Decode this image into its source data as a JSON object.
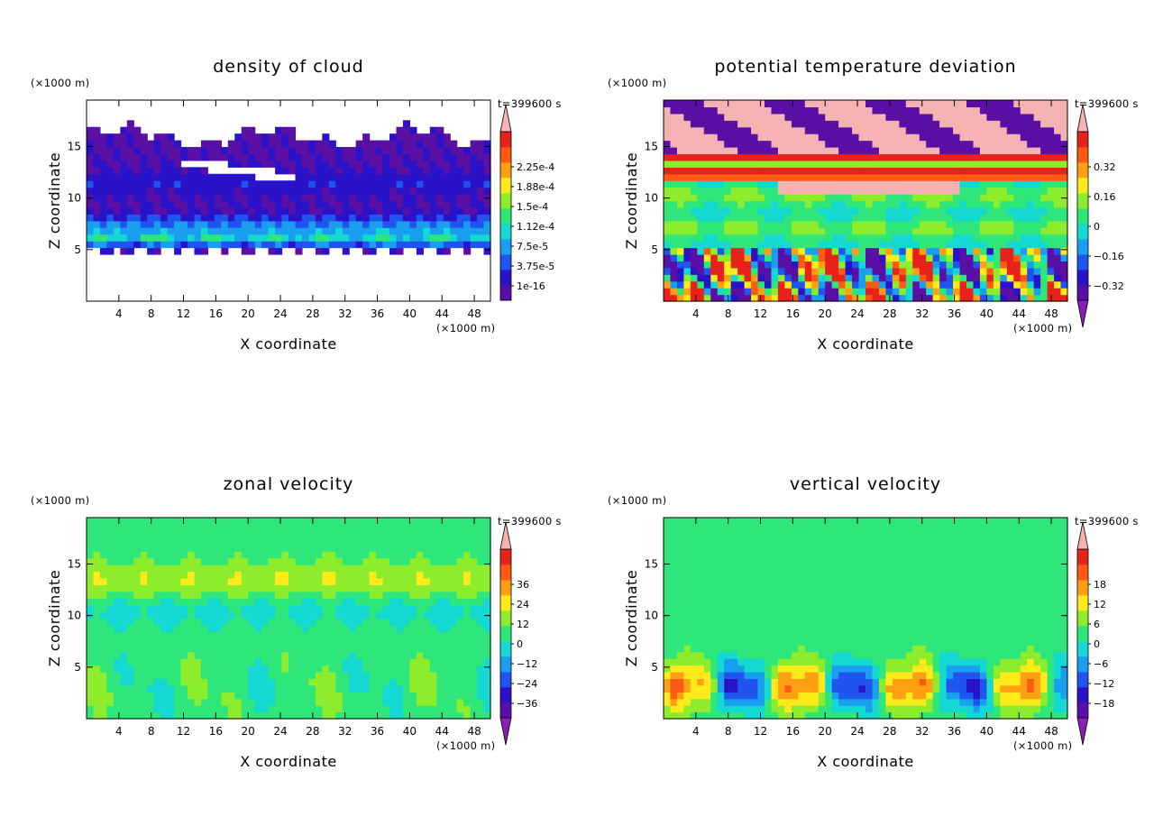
{
  "chart_data": [
    {
      "type": "heatmap",
      "title": "density of cloud",
      "xlabel": "X coordinate",
      "ylabel": "Z coordinate",
      "x_unit": "(×1000 m)",
      "y_unit": "(×1000 m)",
      "time_label": "t=399600 s",
      "xlim": [
        0,
        50
      ],
      "ylim": [
        0,
        19.5
      ],
      "x_ticks": [
        "4",
        "8",
        "12",
        "16",
        "20",
        "24",
        "28",
        "32",
        "36",
        "40",
        "44",
        "48"
      ],
      "y_ticks": [
        "5",
        "10",
        "15"
      ],
      "colorbar_labels": [
        "2.25e-4",
        "1.88e-4",
        "1.5e-4",
        "1.12e-4",
        "7.5e-5",
        "3.75e-5",
        "1e-16"
      ],
      "colorbar_over": true,
      "colorbar_under": false,
      "field": "cloud",
      "palette": [
        "#5a0fa5",
        "#2a12c8",
        "#1f55ee",
        "#1a9ff0",
        "#14d8d2",
        "#2ee67a",
        "#8ded2c",
        "#ffeb1a",
        "#ffa014",
        "#ff5a14",
        "#e8221a"
      ],
      "over_color": "#f5b2b2",
      "under_color": "#8b1fb0"
    },
    {
      "type": "heatmap",
      "title": "potential temperature deviation",
      "xlabel": "X coordinate",
      "ylabel": "Z coordinate",
      "x_unit": "(×1000 m)",
      "y_unit": "(×1000 m)",
      "time_label": "t=399600 s",
      "xlim": [
        0,
        50
      ],
      "ylim": [
        0,
        19.5
      ],
      "x_ticks": [
        "4",
        "8",
        "12",
        "16",
        "20",
        "24",
        "28",
        "32",
        "36",
        "40",
        "44",
        "48"
      ],
      "y_ticks": [
        "5",
        "10",
        "15"
      ],
      "colorbar_labels": [
        "0.32",
        "0.16",
        "0",
        "−0.16",
        "−0.32"
      ],
      "colorbar_over": true,
      "colorbar_under": true,
      "field": "theta",
      "palette": [
        "#5a0fa5",
        "#2a12c8",
        "#1f55ee",
        "#1a9ff0",
        "#14d8d2",
        "#2ee67a",
        "#8ded2c",
        "#ffeb1a",
        "#ffa014",
        "#ff5a14",
        "#e8221a"
      ],
      "over_color": "#f5b2b2",
      "under_color": "#8b1fb0"
    },
    {
      "type": "heatmap",
      "title": "zonal velocity",
      "xlabel": "X coordinate",
      "ylabel": "Z coordinate",
      "x_unit": "(×1000 m)",
      "y_unit": "(×1000 m)",
      "time_label": "t=399600 s",
      "xlim": [
        0,
        50
      ],
      "ylim": [
        0,
        19.5
      ],
      "x_ticks": [
        "4",
        "8",
        "12",
        "16",
        "20",
        "24",
        "28",
        "32",
        "36",
        "40",
        "44",
        "48"
      ],
      "y_ticks": [
        "5",
        "10",
        "15"
      ],
      "colorbar_labels": [
        "36",
        "24",
        "12",
        "0",
        "−12",
        "−24",
        "−36"
      ],
      "colorbar_over": true,
      "colorbar_under": true,
      "field": "zonal",
      "palette": [
        "#5a0fa5",
        "#2a12c8",
        "#1f55ee",
        "#1a9ff0",
        "#14d8d2",
        "#2ee67a",
        "#8ded2c",
        "#ffeb1a",
        "#ffa014",
        "#ff5a14",
        "#e8221a"
      ],
      "over_color": "#f5b2b2",
      "under_color": "#8b1fb0"
    },
    {
      "type": "heatmap",
      "title": "vertical velocity",
      "xlabel": "X coordinate",
      "ylabel": "Z coordinate",
      "x_unit": "(×1000 m)",
      "y_unit": "(×1000 m)",
      "time_label": "t=399600 s",
      "xlim": [
        0,
        50
      ],
      "ylim": [
        0,
        19.5
      ],
      "x_ticks": [
        "4",
        "8",
        "12",
        "16",
        "20",
        "24",
        "28",
        "32",
        "36",
        "40",
        "44",
        "48"
      ],
      "y_ticks": [
        "5",
        "10",
        "15"
      ],
      "colorbar_labels": [
        "18",
        "12",
        "6",
        "0",
        "−6",
        "−12",
        "−18"
      ],
      "colorbar_over": true,
      "colorbar_under": true,
      "field": "vertical",
      "palette": [
        "#5a0fa5",
        "#2a12c8",
        "#1f55ee",
        "#1a9ff0",
        "#14d8d2",
        "#2ee67a",
        "#8ded2c",
        "#ffeb1a",
        "#ffa014",
        "#ff5a14",
        "#e8221a"
      ],
      "over_color": "#f5b2b2",
      "under_color": "#8b1fb0"
    }
  ]
}
